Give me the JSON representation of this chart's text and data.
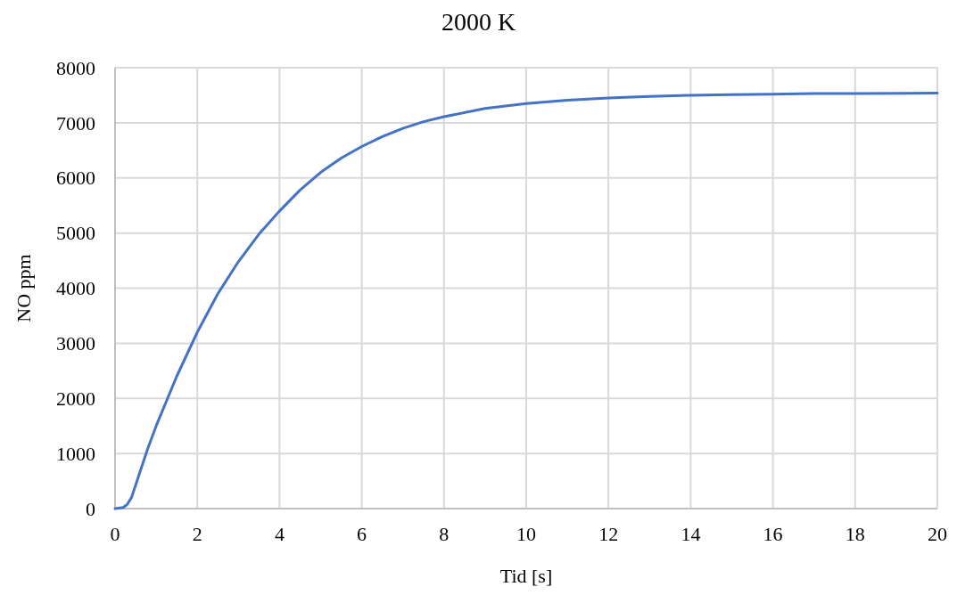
{
  "chart_data": {
    "type": "line",
    "title": "2000 K",
    "xlabel": "Tid [s]",
    "ylabel": "NO ppm",
    "x": [
      0,
      0.2,
      0.3,
      0.4,
      0.6,
      0.8,
      1,
      1.5,
      2,
      2.5,
      3,
      3.5,
      4,
      4.5,
      5,
      5.5,
      6,
      6.5,
      7,
      7.5,
      8,
      9,
      10,
      11,
      12,
      13,
      14,
      15,
      16,
      17,
      18,
      20
    ],
    "series": [
      {
        "color": "#4472c4",
        "values": [
          0,
          20,
          80,
          200,
          650,
          1100,
          1500,
          2400,
          3200,
          3900,
          4480,
          4980,
          5400,
          5780,
          6100,
          6360,
          6570,
          6750,
          6900,
          7020,
          7110,
          7260,
          7350,
          7410,
          7450,
          7480,
          7500,
          7510,
          7520,
          7530,
          7530,
          7540
        ]
      }
    ],
    "xlim": [
      0,
      20
    ],
    "xticks": [
      0,
      2,
      4,
      6,
      8,
      10,
      12,
      14,
      16,
      18,
      20
    ],
    "ylim": [
      0,
      8000
    ],
    "yticks": [
      0,
      1000,
      2000,
      3000,
      4000,
      5000,
      6000,
      7000,
      8000
    ],
    "grid": true,
    "marker": "none",
    "line_style": "solid"
  }
}
